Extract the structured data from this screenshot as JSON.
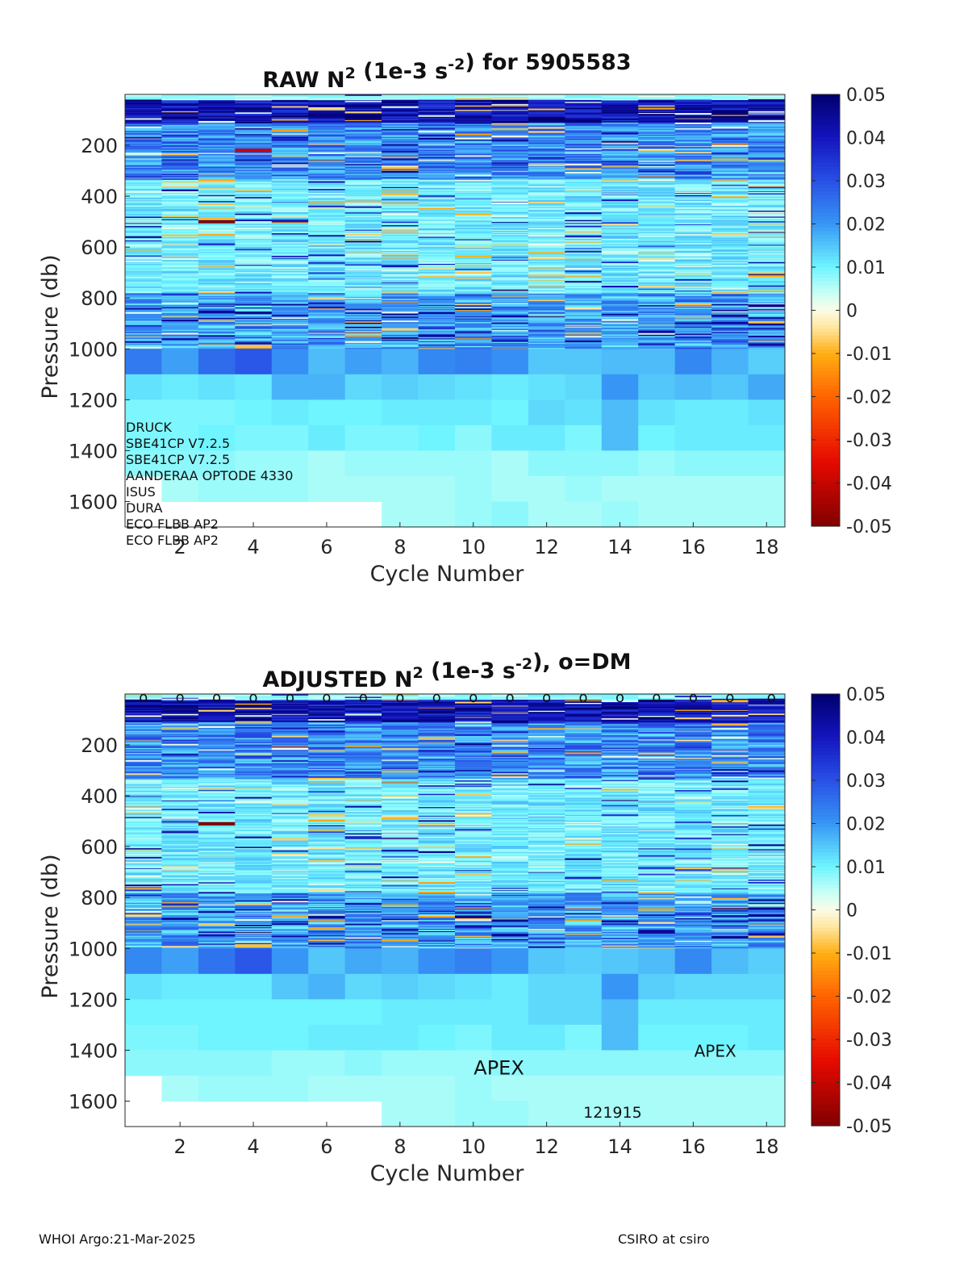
{
  "footer": {
    "left": "WHOI Argo:21-Mar-2025",
    "right": "CSIRO at csiro"
  },
  "chart_data": [
    {
      "type": "heatmap",
      "title": {
        "base": "RAW N",
        "sup1": "2",
        "mid": " (1e-3 s",
        "sup2": "-2",
        "end": ") for 5905583"
      },
      "xlabel": "Cycle Number",
      "ylabel": "Pressure (db)",
      "xlim": [
        1,
        18
      ],
      "ylim": [
        1700,
        0
      ],
      "y_reversed": true,
      "xticks": [
        2,
        4,
        6,
        8,
        10,
        12,
        14,
        16,
        18
      ],
      "yticks": [
        200,
        400,
        600,
        800,
        1000,
        1200,
        1400,
        1600
      ],
      "colorbar": {
        "colormap": "jet-like diverging (dark red to dark blue)",
        "range": [
          -0.05,
          0.05
        ],
        "ticks": [
          "0.05",
          "0.04",
          "0.03",
          "0.02",
          "0.01",
          "0",
          "-0.01",
          "-0.02",
          "-0.03",
          "-0.04",
          "-0.05"
        ]
      },
      "x_cycles": [
        1,
        2,
        3,
        4,
        5,
        6,
        7,
        8,
        9,
        10,
        11,
        12,
        13,
        14,
        15,
        16,
        17,
        18
      ],
      "deep_levels_db": [
        1000,
        1100,
        1200,
        1300,
        1400,
        1500,
        1600,
        1700
      ],
      "deep_values": [
        [
          0.024,
          0.019,
          0.026,
          0.029,
          0.021,
          0.016,
          0.019,
          0.017,
          0.022,
          0.023,
          0.021,
          0.015,
          0.015,
          0.016,
          0.016,
          0.022,
          0.017,
          0.014
        ],
        [
          0.012,
          0.011,
          0.012,
          0.011,
          0.017,
          0.017,
          0.013,
          0.014,
          0.013,
          0.012,
          0.011,
          0.012,
          0.013,
          0.02,
          0.015,
          0.016,
          0.015,
          0.018
        ],
        [
          0.009,
          0.009,
          0.009,
          0.01,
          0.011,
          0.01,
          0.01,
          0.011,
          0.011,
          0.011,
          0.01,
          0.013,
          0.012,
          0.016,
          0.012,
          0.011,
          0.011,
          0.012
        ],
        [
          0.009,
          0.009,
          0.01,
          0.009,
          0.009,
          0.011,
          0.009,
          0.009,
          0.01,
          0.008,
          0.011,
          0.011,
          0.009,
          0.016,
          0.01,
          0.011,
          0.011,
          0.011
        ],
        [
          0.008,
          0.008,
          0.008,
          0.007,
          0.007,
          0.006,
          0.007,
          0.007,
          0.007,
          0.007,
          0.006,
          0.008,
          0.008,
          0.008,
          0.007,
          0.008,
          0.008,
          0.008
        ],
        [
          null,
          0.006,
          0.007,
          0.007,
          0.007,
          0.006,
          0.006,
          0.006,
          0.006,
          0.007,
          0.006,
          0.006,
          0.007,
          0.006,
          0.006,
          0.006,
          0.006,
          0.006
        ],
        [
          null,
          null,
          null,
          null,
          null,
          null,
          null,
          0.006,
          0.006,
          0.007,
          0.008,
          0.006,
          0.006,
          0.007,
          0.006,
          0.006,
          0.006,
          0.006
        ]
      ],
      "notable_features": [
        {
          "cycle": 3,
          "pressure_db": 500,
          "value": -0.05
        },
        {
          "cycle": 4,
          "pressure_db": 220,
          "value": -0.04
        },
        {
          "cycle": 4,
          "pressure_db": 990,
          "value": -0.008
        }
      ],
      "annotations": [
        "DRUCK",
        "SBE41CP V7.2.5",
        "SBE41CP V7.2.5",
        "AANDERAA OPTODE 4330",
        "ISUS",
        "DURA",
        "ECO FLBB AP2",
        "ECO FLBB AP2"
      ]
    },
    {
      "type": "heatmap",
      "title": {
        "base": "ADJUSTED N",
        "sup1": "2",
        "mid": " (1e-3 s",
        "sup2": "-2",
        "end": "), o=DM"
      },
      "xlabel": "Cycle Number",
      "ylabel": "Pressure (db)",
      "xlim": [
        1,
        18
      ],
      "ylim": [
        1700,
        0
      ],
      "y_reversed": true,
      "xticks": [
        2,
        4,
        6,
        8,
        10,
        12,
        14,
        16,
        18
      ],
      "yticks": [
        200,
        400,
        600,
        800,
        1000,
        1200,
        1400,
        1600
      ],
      "colorbar": {
        "colormap": "jet-like diverging (dark red to dark blue)",
        "range": [
          -0.05,
          0.05
        ],
        "ticks": [
          "0.05",
          "0.04",
          "0.03",
          "0.02",
          "0.01",
          "0",
          "-0.01",
          "-0.02",
          "-0.03",
          "-0.04",
          "-0.05"
        ]
      },
      "x_cycles": [
        1,
        2,
        3,
        4,
        5,
        6,
        7,
        8,
        9,
        10,
        11,
        12,
        13,
        14,
        15,
        16,
        17,
        18
      ],
      "deep_levels_db": [
        1000,
        1100,
        1200,
        1300,
        1400,
        1500,
        1600,
        1700
      ],
      "deep_values": [
        [
          0.022,
          0.019,
          0.025,
          0.029,
          0.02,
          0.015,
          0.018,
          0.017,
          0.021,
          0.023,
          0.02,
          0.015,
          0.014,
          0.015,
          0.016,
          0.022,
          0.016,
          0.014
        ],
        [
          0.012,
          0.011,
          0.011,
          0.011,
          0.015,
          0.017,
          0.013,
          0.014,
          0.013,
          0.012,
          0.011,
          0.013,
          0.013,
          0.02,
          0.014,
          0.013,
          0.013,
          0.013
        ],
        [
          0.01,
          0.01,
          0.01,
          0.01,
          0.01,
          0.01,
          0.01,
          0.011,
          0.011,
          0.011,
          0.011,
          0.013,
          0.013,
          0.016,
          0.011,
          0.011,
          0.011,
          0.011
        ],
        [
          0.009,
          0.009,
          0.01,
          0.01,
          0.01,
          0.011,
          0.011,
          0.011,
          0.01,
          0.009,
          0.011,
          0.011,
          0.009,
          0.016,
          0.01,
          0.01,
          0.01,
          0.011
        ],
        [
          0.008,
          0.008,
          0.008,
          0.008,
          0.007,
          0.007,
          0.008,
          0.007,
          0.007,
          0.007,
          0.008,
          0.008,
          0.008,
          0.008,
          0.008,
          0.008,
          0.008,
          0.008
        ],
        [
          null,
          0.006,
          0.007,
          0.007,
          0.007,
          0.006,
          0.006,
          0.006,
          0.006,
          0.007,
          0.006,
          0.006,
          0.006,
          0.006,
          0.006,
          0.006,
          0.006,
          0.006
        ],
        [
          null,
          null,
          null,
          null,
          null,
          null,
          null,
          0.006,
          0.006,
          0.007,
          0.007,
          0.006,
          0.006,
          0.006,
          0.006,
          0.006,
          0.006,
          0.006
        ]
      ],
      "dm_marker": "o",
      "dm_cycles": [
        1,
        2,
        3,
        4,
        5,
        6,
        7,
        8,
        9,
        10,
        11,
        12,
        13,
        14,
        15,
        16,
        17,
        18
      ],
      "dm_pressure_db": 0,
      "notable_features": [
        {
          "cycle": 3,
          "pressure_db": 510,
          "value": -0.05
        },
        {
          "cycle": 4,
          "pressure_db": 990,
          "value": -0.008
        }
      ],
      "annotations": [
        {
          "text": "APEX",
          "cycle": 10.7,
          "pressure_db": 1470,
          "size": "large"
        },
        {
          "text": "APEX",
          "cycle": 16.6,
          "pressure_db": 1400,
          "size": "medium"
        },
        {
          "text": "121915",
          "cycle": 13.8,
          "pressure_db": 1640,
          "size": "small"
        }
      ]
    }
  ]
}
